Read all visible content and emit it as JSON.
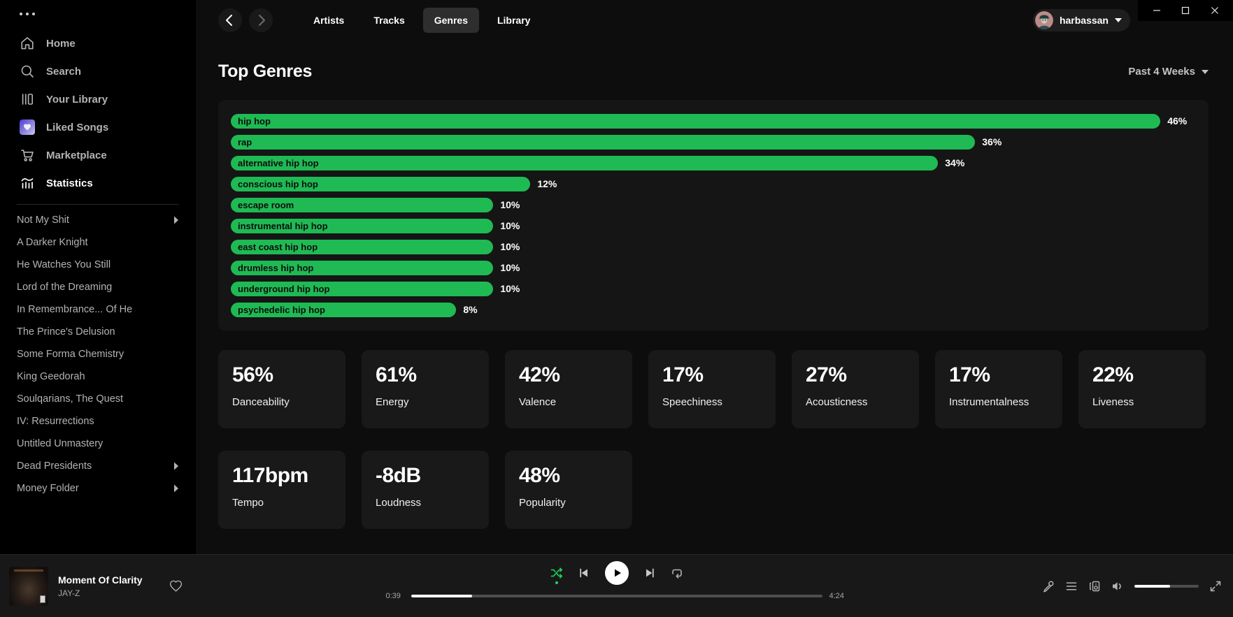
{
  "titlebar": {
    "window_controls": [
      "minimize",
      "maximize",
      "close"
    ]
  },
  "sidebar": {
    "nav": [
      {
        "label": "Home",
        "icon": "home-icon",
        "active": false
      },
      {
        "label": "Search",
        "icon": "search-icon",
        "active": false
      },
      {
        "label": "Your Library",
        "icon": "library-icon",
        "active": false
      },
      {
        "label": "Liked Songs",
        "icon": "liked-songs-heart-icon",
        "active": false
      },
      {
        "label": "Marketplace",
        "icon": "cart-icon",
        "active": false
      },
      {
        "label": "Statistics",
        "icon": "stats-icon",
        "active": true
      }
    ],
    "playlists": [
      {
        "label": "Not My Shit",
        "folder": true
      },
      {
        "label": "A Darker Knight",
        "folder": false
      },
      {
        "label": "He Watches You Still",
        "folder": false
      },
      {
        "label": "Lord of the Dreaming",
        "folder": false
      },
      {
        "label": "In Remembrance... Of He",
        "folder": false
      },
      {
        "label": "The Prince's Delusion",
        "folder": false
      },
      {
        "label": "Some Forma Chemistry",
        "folder": false
      },
      {
        "label": "King Geedorah",
        "folder": false
      },
      {
        "label": "Soulqarians, The Quest",
        "folder": false
      },
      {
        "label": "IV: Resurrections",
        "folder": false
      },
      {
        "label": "Untitled Unmastery",
        "folder": false
      },
      {
        "label": "Dead Presidents",
        "folder": true
      },
      {
        "label": "Money Folder",
        "folder": true
      }
    ]
  },
  "header": {
    "tabs": [
      {
        "label": "Artists",
        "active": false
      },
      {
        "label": "Tracks",
        "active": false
      },
      {
        "label": "Genres",
        "active": true
      },
      {
        "label": "Library",
        "active": false
      }
    ],
    "user_name": "harbassan"
  },
  "page": {
    "title": "Top Genres",
    "time_range": "Past 4 Weeks"
  },
  "chart_data": {
    "type": "bar",
    "orientation": "horizontal",
    "title": "Top Genres",
    "time_range": "Past 4 Weeks",
    "categories": [
      "hip hop",
      "rap",
      "alternative hip hop",
      "conscious hip hop",
      "escape room",
      "instrumental hip hop",
      "east coast hip hop",
      "drumless hip hop",
      "underground hip hop",
      "psychedelic hip hop"
    ],
    "values": [
      46,
      36,
      34,
      12,
      10,
      10,
      10,
      10,
      10,
      8
    ],
    "unit": "%",
    "xlim": [
      0,
      46
    ],
    "bar_color": "#1fba54",
    "label_inside_bar": true,
    "value_label_color": "#ffffff",
    "grid": false,
    "legend": false
  },
  "stats_cards": {
    "row1": [
      {
        "value": "56%",
        "label": "Danceability"
      },
      {
        "value": "61%",
        "label": "Energy"
      },
      {
        "value": "42%",
        "label": "Valence"
      },
      {
        "value": "17%",
        "label": "Speechiness"
      },
      {
        "value": "27%",
        "label": "Acousticness"
      },
      {
        "value": "17%",
        "label": "Instrumentalness"
      },
      {
        "value": "22%",
        "label": "Liveness"
      }
    ],
    "row2": [
      {
        "value": "117bpm",
        "label": "Tempo"
      },
      {
        "value": "-8dB",
        "label": "Loudness"
      },
      {
        "value": "48%",
        "label": "Popularity"
      }
    ]
  },
  "player": {
    "track_title": "Moment Of Clarity",
    "track_artist": "JAY-Z",
    "elapsed": "0:39",
    "duration": "4:24",
    "progress_percent": 14.8,
    "volume_percent": 55,
    "shuffle_active": true,
    "accent_color": "#1ed760"
  }
}
